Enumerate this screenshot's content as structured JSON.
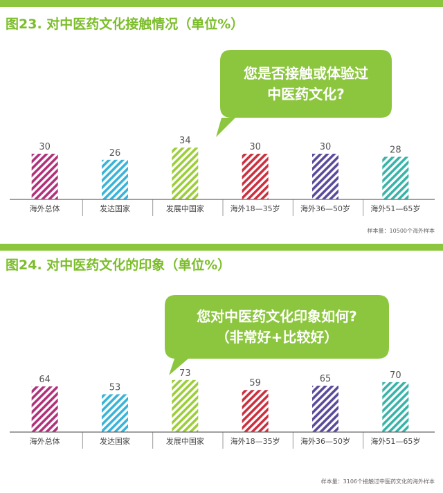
{
  "colors": {
    "accent": "#8cc63f",
    "title": "#7cbd2a",
    "magenta": "#b0317a",
    "cyan": "#3ab3d8",
    "lime": "#9ccd3a",
    "red": "#cc2f3e",
    "purple": "#5a4a9a",
    "teal": "#38b3a8"
  },
  "chart_data": [
    {
      "type": "bar",
      "title": "图23. 对中医药文化接触情况（单位%）",
      "question_line1": "您是否接触或体验过",
      "question_line2": "中医药文化?",
      "categories": [
        "海外总体",
        "发达国家",
        "发展中国家",
        "海外18—35岁",
        "海外36—50岁",
        "海外51—65岁"
      ],
      "values": [
        30,
        26,
        34,
        30,
        30,
        28
      ],
      "ylim": [
        0,
        40
      ],
      "note": "样本量：10500个海外样本"
    },
    {
      "type": "bar",
      "title": "图24. 对中医药文化的印象（单位%）",
      "question_line1": "您对中医药文化印象如何?",
      "question_line2": "（非常好+比较好）",
      "categories": [
        "海外总体",
        "发达国家",
        "发展中国家",
        "海外18—35岁",
        "海外36—50岁",
        "海外51—65岁"
      ],
      "values": [
        64,
        53,
        73,
        59,
        65,
        70
      ],
      "ylim": [
        0,
        80
      ],
      "note": "样本量：3106个接触过中医药文化的海外样本"
    }
  ]
}
